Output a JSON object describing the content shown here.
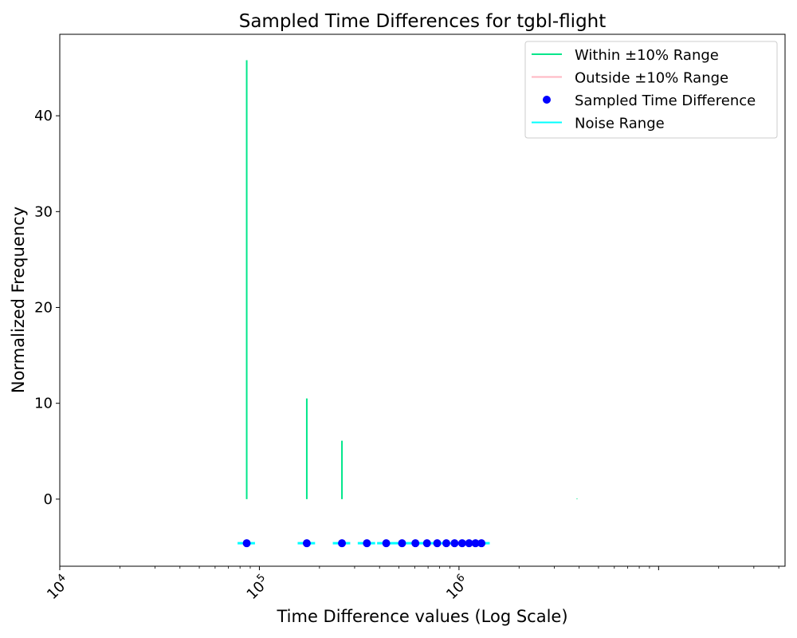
{
  "chart_data": {
    "type": "line",
    "title": "Sampled Time Differences for tgbl-flight",
    "xlabel": "Time Difference values (Log Scale)",
    "ylabel": "Normalized Frequency",
    "xscale": "log",
    "xlim": [
      10000,
      43000000
    ],
    "ylim": [
      -7,
      48.5
    ],
    "xticks": [
      {
        "value": 10000,
        "base": "10",
        "exp": "4"
      },
      {
        "value": 100000,
        "base": "10",
        "exp": "5"
      },
      {
        "value": 1000000,
        "base": "10",
        "exp": "6"
      }
    ],
    "yticks": [
      0,
      10,
      20,
      30,
      40
    ],
    "grid": false,
    "legend_position": "top-right",
    "legend": [
      {
        "label": "Within ±10% Range",
        "kind": "line",
        "color": "#00e68a"
      },
      {
        "label": "Outside ±10% Range",
        "kind": "line",
        "color": "#ffb6c1"
      },
      {
        "label": "Sampled Time Difference",
        "kind": "marker",
        "color": "#0000ff"
      },
      {
        "label": "Noise Range",
        "kind": "line",
        "color": "#00ffff"
      }
    ],
    "series": [
      {
        "name": "Within ±10% Range",
        "color": "#00e68a",
        "kind": "vlines",
        "points": [
          {
            "x": 86400,
            "y": 45.8
          },
          {
            "x": 172800,
            "y": 10.5
          },
          {
            "x": 259200,
            "y": 6.1
          },
          {
            "x": 3900000,
            "y": 0.05
          }
        ]
      },
      {
        "name": "Sampled Time Difference",
        "color": "#0000ff",
        "kind": "markers",
        "y": -4.6,
        "x": [
          86400,
          172800,
          259200,
          345600,
          432000,
          518400,
          604800,
          691200,
          777600,
          864000,
          950400,
          1036800,
          1123200,
          1209600,
          1296000
        ]
      },
      {
        "name": "Noise Range",
        "color": "#00ffff",
        "kind": "hranges",
        "y": -4.6,
        "ranges": [
          [
            77760,
            95040
          ],
          [
            155520,
            190080
          ],
          [
            233280,
            285120
          ],
          [
            311040,
            380160
          ],
          [
            388800,
            1425600
          ]
        ]
      }
    ]
  }
}
